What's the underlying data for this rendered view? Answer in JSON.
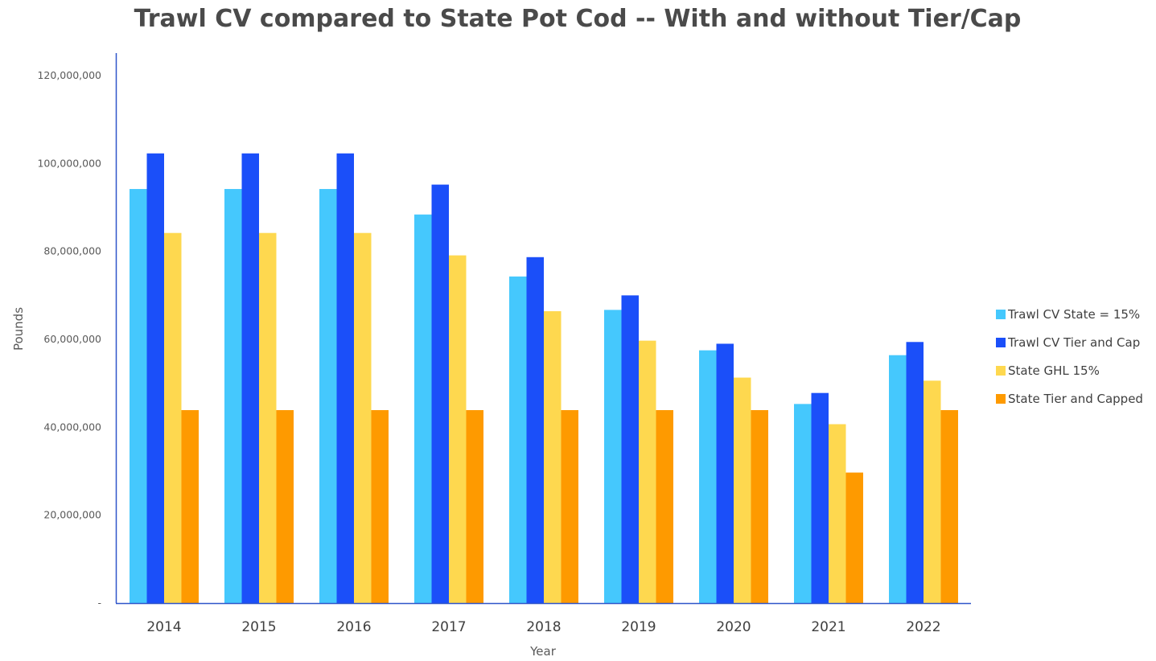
{
  "chart_data": {
    "type": "bar",
    "title": "Trawl CV compared to State Pot Cod -- With and without Tier/Cap",
    "xlabel": "Year",
    "ylabel": "Pounds",
    "categories": [
      "2014",
      "2015",
      "2016",
      "2017",
      "2018",
      "2019",
      "2020",
      "2021",
      "2022"
    ],
    "ylim": [
      0,
      120000000
    ],
    "yticks": [
      0,
      20000000,
      40000000,
      60000000,
      80000000,
      100000000,
      120000000
    ],
    "ytick_labels": [
      "-",
      "20,000,000",
      "40,000,000",
      "60,000,000",
      "80,000,000",
      "100,000,000",
      "120,000,000"
    ],
    "grid": false,
    "legend_position": "right",
    "series": [
      {
        "name": "Trawl CV State = 15%",
        "color": "#45c8fd",
        "values": [
          94200000,
          94200000,
          94200000,
          88400000,
          74300000,
          66700000,
          57500000,
          45300000,
          56400000
        ]
      },
      {
        "name": "Trawl CV Tier and Cap",
        "color": "#1b4ff9",
        "values": [
          102300000,
          102300000,
          102300000,
          95200000,
          78700000,
          70000000,
          59000000,
          47800000,
          59400000
        ]
      },
      {
        "name": "State GHL 15%",
        "color": "#fed84f",
        "values": [
          84200000,
          84200000,
          84200000,
          79100000,
          66400000,
          59700000,
          51300000,
          40700000,
          50600000
        ]
      },
      {
        "name": "State Tier and Capped",
        "color": "#fe9a00",
        "values": [
          43900000,
          43900000,
          43900000,
          43900000,
          43900000,
          43900000,
          43900000,
          29700000,
          43900000
        ]
      }
    ]
  }
}
